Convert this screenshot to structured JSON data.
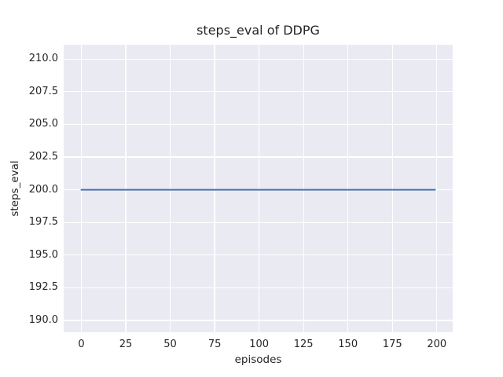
{
  "figure": {
    "background_color": "#ffffff",
    "plot_background_color": "#eaeaf2",
    "grid_color": "#ffffff",
    "text_color": "#262626"
  },
  "chart_data": {
    "type": "line",
    "title": "steps_eval of DDPG",
    "xlabel": "episodes",
    "ylabel": "steps_eval",
    "x_ticks": [
      0,
      25,
      50,
      75,
      100,
      125,
      150,
      175,
      200
    ],
    "y_ticks": [
      190.0,
      192.5,
      195.0,
      197.5,
      200.0,
      202.5,
      205.0,
      207.5,
      210.0
    ],
    "xlim": [
      -9.95,
      208.95
    ],
    "ylim": [
      189.1,
      211.1
    ],
    "grid": true,
    "legend_position": "none",
    "series": [
      {
        "name": "steps_eval",
        "color": "#4c72b0",
        "line_width": 2,
        "x": [
          0,
          199
        ],
        "y": [
          200.0,
          200.0
        ]
      }
    ]
  }
}
